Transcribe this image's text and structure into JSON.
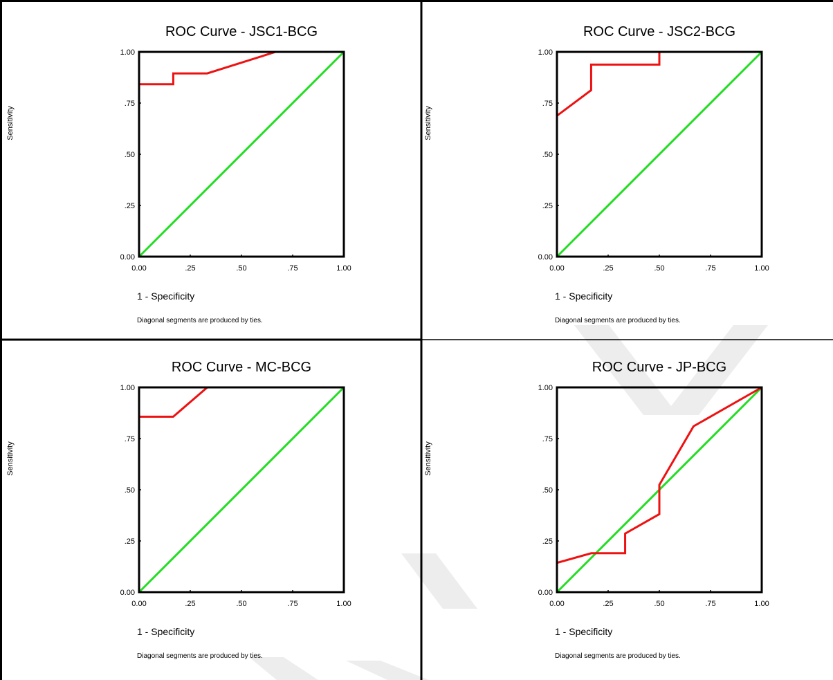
{
  "footnote": "Diagonal segments are produced by ties.",
  "colors": {
    "roc_curve": "#ee1111",
    "reference_line": "#22dd22",
    "frame": "#000000",
    "watermark": "#ededed"
  },
  "chart_data": [
    {
      "type": "line",
      "title": "ROC Curve - JSC1-BCG",
      "xlabel": "1 - Specificity",
      "ylabel": "Sensitivity",
      "xlim": [
        0,
        1
      ],
      "ylim": [
        0,
        1
      ],
      "x_ticks": [
        "0.00",
        ".25",
        ".50",
        ".75",
        "1.00"
      ],
      "y_ticks": [
        "0.00",
        ".25",
        ".50",
        ".75",
        "1.00"
      ],
      "grid": false,
      "series": [
        {
          "role": "roc",
          "color": "#ee1111",
          "x": [
            0,
            0,
            0.167,
            0.167,
            0.333,
            0.667,
            1.0
          ],
          "y": [
            0,
            0.842,
            0.842,
            0.895,
            0.895,
            1.0,
            1.0
          ]
        },
        {
          "role": "reference",
          "color": "#22dd22",
          "x": [
            0,
            1
          ],
          "y": [
            0,
            1
          ]
        }
      ]
    },
    {
      "type": "line",
      "title": "ROC Curve - JSC2-BCG",
      "xlabel": "1 - Specificity",
      "ylabel": "Sensitivity",
      "xlim": [
        0,
        1
      ],
      "ylim": [
        0,
        1
      ],
      "x_ticks": [
        "0.00",
        ".25",
        ".50",
        ".75",
        "1.00"
      ],
      "y_ticks": [
        "0.00",
        ".25",
        ".50",
        ".75",
        "1.00"
      ],
      "grid": false,
      "series": [
        {
          "role": "roc",
          "color": "#ee1111",
          "x": [
            0,
            0,
            0.167,
            0.167,
            0.5,
            0.5,
            1.0
          ],
          "y": [
            0,
            0.688,
            0.813,
            0.938,
            0.938,
            1.0,
            1.0
          ]
        },
        {
          "role": "reference",
          "color": "#22dd22",
          "x": [
            0,
            1
          ],
          "y": [
            0,
            1
          ]
        }
      ]
    },
    {
      "type": "line",
      "title": "ROC Curve - MC-BCG",
      "xlabel": "1 - Specificity",
      "ylabel": "Sensitivity",
      "xlim": [
        0,
        1
      ],
      "ylim": [
        0,
        1
      ],
      "x_ticks": [
        "0.00",
        ".25",
        ".50",
        ".75",
        "1.00"
      ],
      "y_ticks": [
        "0.00",
        ".25",
        ".50",
        ".75",
        "1.00"
      ],
      "grid": false,
      "series": [
        {
          "role": "roc",
          "color": "#ee1111",
          "x": [
            0,
            0,
            0.167,
            0.333,
            1.0
          ],
          "y": [
            0,
            0.857,
            0.857,
            1.0,
            1.0
          ]
        },
        {
          "role": "reference",
          "color": "#22dd22",
          "x": [
            0,
            1
          ],
          "y": [
            0,
            1
          ]
        }
      ]
    },
    {
      "type": "line",
      "title": "ROC Curve - JP-BCG",
      "xlabel": "1 - Specificity",
      "ylabel": "Sensitivity",
      "xlim": [
        0,
        1
      ],
      "ylim": [
        0,
        1
      ],
      "x_ticks": [
        "0.00",
        ".25",
        ".50",
        ".75",
        "1.00"
      ],
      "y_ticks": [
        "0.00",
        ".25",
        ".50",
        ".75",
        "1.00"
      ],
      "grid": false,
      "series": [
        {
          "role": "roc",
          "color": "#ee1111",
          "x": [
            0,
            0,
            0.167,
            0.333,
            0.333,
            0.5,
            0.5,
            0.667,
            1.0
          ],
          "y": [
            0,
            0.143,
            0.19,
            0.19,
            0.286,
            0.381,
            0.524,
            0.81,
            1.0
          ]
        },
        {
          "role": "reference",
          "color": "#22dd22",
          "x": [
            0,
            1
          ],
          "y": [
            0,
            1
          ]
        }
      ]
    }
  ]
}
